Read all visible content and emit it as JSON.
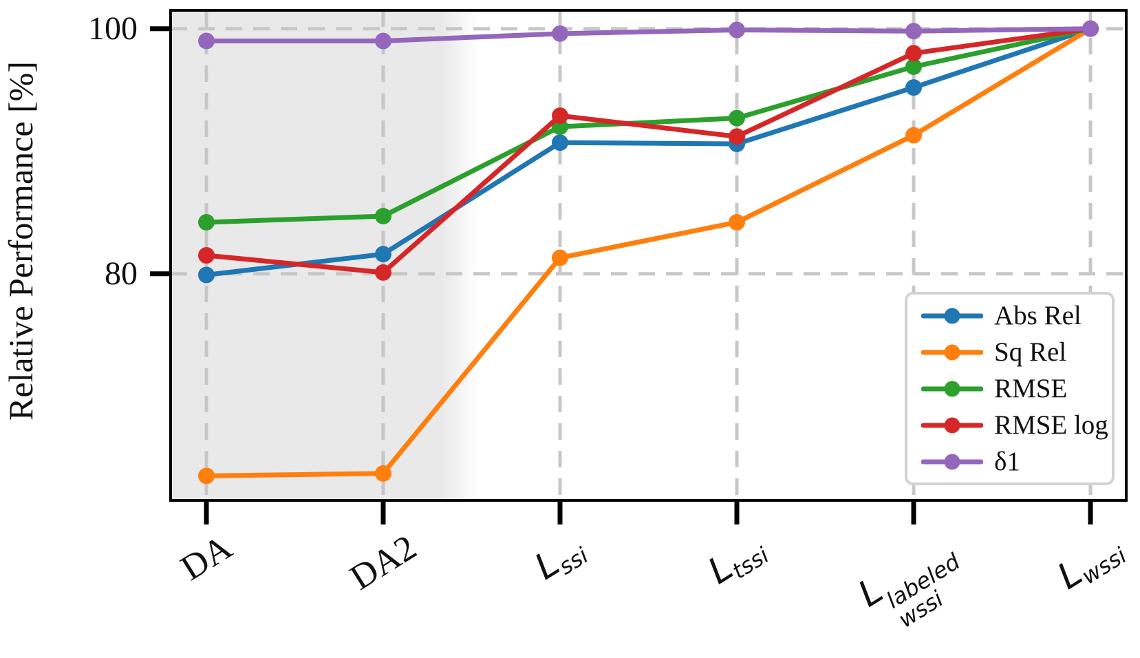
{
  "chart_data": {
    "type": "line",
    "title": "",
    "xlabel": "",
    "ylabel": "Relative Performance [%]",
    "ylim": [
      61.5,
      101.5
    ],
    "yticks": [
      100,
      80
    ],
    "ytick_labels": [
      "100",
      "80"
    ],
    "grid": true,
    "grid_style": "dashed",
    "legend_position": "lower right",
    "categories": [
      "DA",
      "DA2",
      "L_ssi",
      "L_tssi",
      "L_wssi^labeled",
      "L_wssi"
    ],
    "categories_rich": [
      {
        "base": "DA",
        "math": false
      },
      {
        "base": "DA2",
        "math": false
      },
      {
        "base": "L",
        "sub": "ssi",
        "math": true
      },
      {
        "base": "L",
        "sub": "tssi",
        "math": true
      },
      {
        "base": "L",
        "sub": "wssi",
        "sup": "labeled",
        "math": true
      },
      {
        "base": "L",
        "sub": "wssi",
        "math": true
      }
    ],
    "shaded_region": {
      "from_index": "plot-left",
      "to_index": 1.5,
      "color": "#e9e9e9"
    },
    "series": [
      {
        "name": "Abs Rel",
        "color": "#1f77b4",
        "values": [
          79.9,
          81.6,
          90.7,
          90.6,
          95.2,
          100.0
        ]
      },
      {
        "name": "Sq Rel",
        "color": "#ff7f0e",
        "values": [
          63.5,
          63.7,
          81.3,
          84.2,
          91.3,
          100.0
        ]
      },
      {
        "name": "RMSE",
        "color": "#2ca02c",
        "values": [
          84.2,
          84.7,
          92.0,
          92.7,
          96.9,
          100.0
        ]
      },
      {
        "name": "RMSE log",
        "color": "#d62728",
        "values": [
          81.5,
          80.1,
          92.9,
          91.2,
          98.0,
          100.0
        ]
      },
      {
        "name": "δ1",
        "color": "#9467bd",
        "values": [
          99.0,
          99.0,
          99.6,
          99.9,
          99.8,
          100.0
        ]
      }
    ],
    "style": {
      "grid_color": "#c7c7c7",
      "frame_color": "#000000",
      "tick_color": "#000000",
      "background": "#ffffff",
      "shaded_color": "#e9e9e9"
    }
  }
}
